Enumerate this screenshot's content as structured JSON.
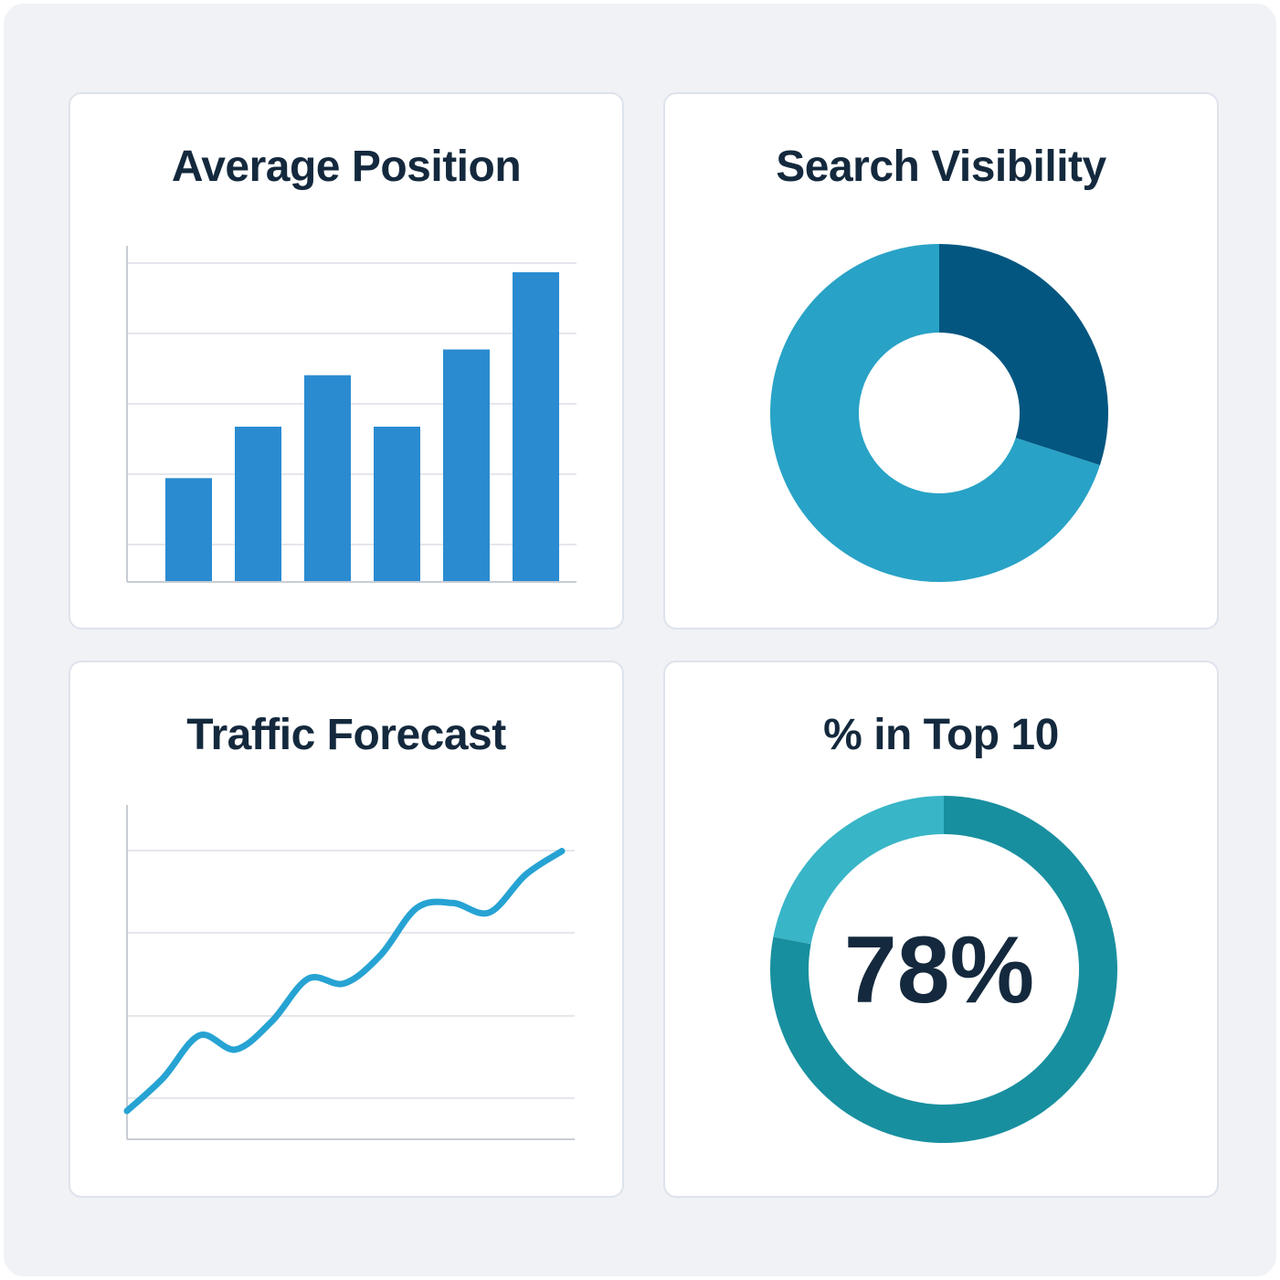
{
  "colors": {
    "bar": "#2a8bd1",
    "visibility_dark": "#035680",
    "visibility_light": "#28a2c6",
    "line": "#26a3d3",
    "top10_main": "#188f9f",
    "top10_light": "#38b5c7",
    "grid": "#e4e7ec",
    "axis": "#c9cdd4",
    "text": "#14293d"
  },
  "cards": {
    "average_position": {
      "title": "Average Position"
    },
    "search_visibility": {
      "title": "Search Visibility"
    },
    "traffic_forecast": {
      "title": "Traffic Forecast"
    },
    "top10": {
      "title": "% in Top 10",
      "value_label": "78%"
    }
  },
  "chart_data": [
    {
      "type": "bar",
      "title": "Average Position",
      "categories": [
        "",
        "",
        "",
        "",
        "",
        ""
      ],
      "values": [
        24,
        36,
        48,
        36,
        54,
        72
      ],
      "ylim": [
        0,
        72
      ],
      "grid": true,
      "legend": "none"
    },
    {
      "type": "pie",
      "title": "Search Visibility",
      "donut": true,
      "slices": [
        {
          "label": "",
          "value": 30,
          "color": "#035680"
        },
        {
          "label": "",
          "value": 70,
          "color": "#28a2c6"
        }
      ],
      "legend": "none"
    },
    {
      "type": "line",
      "title": "Traffic Forecast",
      "x": [
        0,
        1,
        2,
        3,
        4,
        5,
        6,
        7,
        8,
        9,
        10,
        11,
        12
      ],
      "series": [
        {
          "values": [
            6,
            13,
            22,
            19,
            25,
            34,
            33,
            39,
            49,
            50,
            48,
            56,
            61
          ]
        }
      ],
      "ylim": [
        0,
        70
      ],
      "grid": true,
      "legend": "none"
    },
    {
      "type": "pie",
      "title": "% in Top 10",
      "donut": true,
      "center_label": "78%",
      "slices": [
        {
          "label": "",
          "value": 78,
          "color": "#188f9f"
        },
        {
          "label": "",
          "value": 22,
          "color": "#38b5c7"
        }
      ],
      "legend": "none"
    }
  ]
}
